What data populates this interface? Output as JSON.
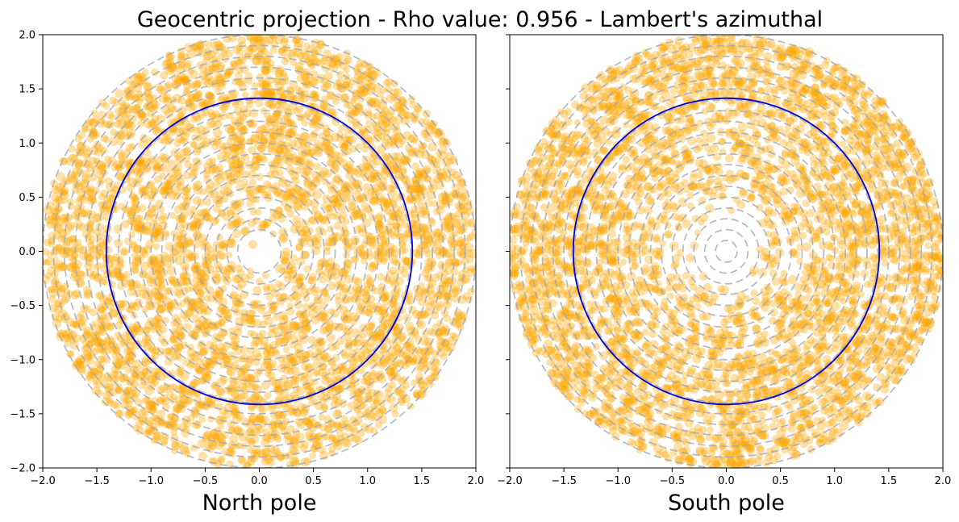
{
  "figure": {
    "title": "Geocentric projection - Rho value: 0.956 - Lambert's azimuthal"
  },
  "chart_data": [
    {
      "type": "scatter",
      "xlabel": "North pole",
      "ylabel": "",
      "xlim": [
        -2.0,
        2.0
      ],
      "ylim": [
        -2.0,
        2.0
      ],
      "x_ticks": [
        "−2.0",
        "−1.5",
        "−1.0",
        "−0.5",
        "0.0",
        "0.5",
        "1.0",
        "1.5",
        "2.0"
      ],
      "y_ticks": [
        "−2.0",
        "−1.5",
        "−1.0",
        "−0.5",
        "0.0",
        "0.5",
        "1.0",
        "1.5",
        "2.0"
      ],
      "show_y_tick_labels": true,
      "point_cloud": {
        "color": "#ffa500",
        "alpha": 0.35,
        "inner_radius": 0.1,
        "outer_radius": 2.0,
        "central_gap_offset_x": 0.15
      },
      "dashed_rings": {
        "color": "#a0a8b8",
        "radii": [
          0.2,
          0.3,
          0.4,
          0.5,
          0.6,
          0.7,
          0.8,
          0.9,
          1.0,
          1.1,
          1.2,
          1.3,
          1.4,
          1.5,
          1.6,
          1.7,
          1.8,
          1.9,
          2.0
        ]
      },
      "reference_circle": {
        "radius": 1.414,
        "color": "#0000cc"
      },
      "grid": false
    },
    {
      "type": "scatter",
      "xlabel": "South pole",
      "ylabel": "",
      "xlim": [
        -2.0,
        2.0
      ],
      "ylim": [
        -2.0,
        2.0
      ],
      "x_ticks": [
        "−2.0",
        "−1.5",
        "−1.0",
        "−0.5",
        "0.0",
        "0.5",
        "1.0",
        "1.5",
        "2.0"
      ],
      "y_ticks": [
        "−2.0",
        "−1.5",
        "−1.0",
        "−0.5",
        "0.0",
        "0.5",
        "1.0",
        "1.5",
        "2.0"
      ],
      "show_y_tick_labels": false,
      "point_cloud": {
        "color": "#ffa500",
        "alpha": 0.35,
        "inner_radius": 0.28,
        "outer_radius": 2.0,
        "central_gap_offset_x": 0.0
      },
      "dashed_rings": {
        "color": "#a0a8b8",
        "radii": [
          0.1,
          0.2,
          0.3,
          0.4,
          0.5,
          0.6,
          0.7,
          0.8,
          0.9,
          1.0,
          1.1,
          1.2,
          1.3,
          1.4,
          1.5,
          1.6,
          1.7,
          1.8,
          1.9,
          2.0
        ]
      },
      "reference_circle": {
        "radius": 1.414,
        "color": "#0000cc"
      },
      "grid": false
    }
  ]
}
